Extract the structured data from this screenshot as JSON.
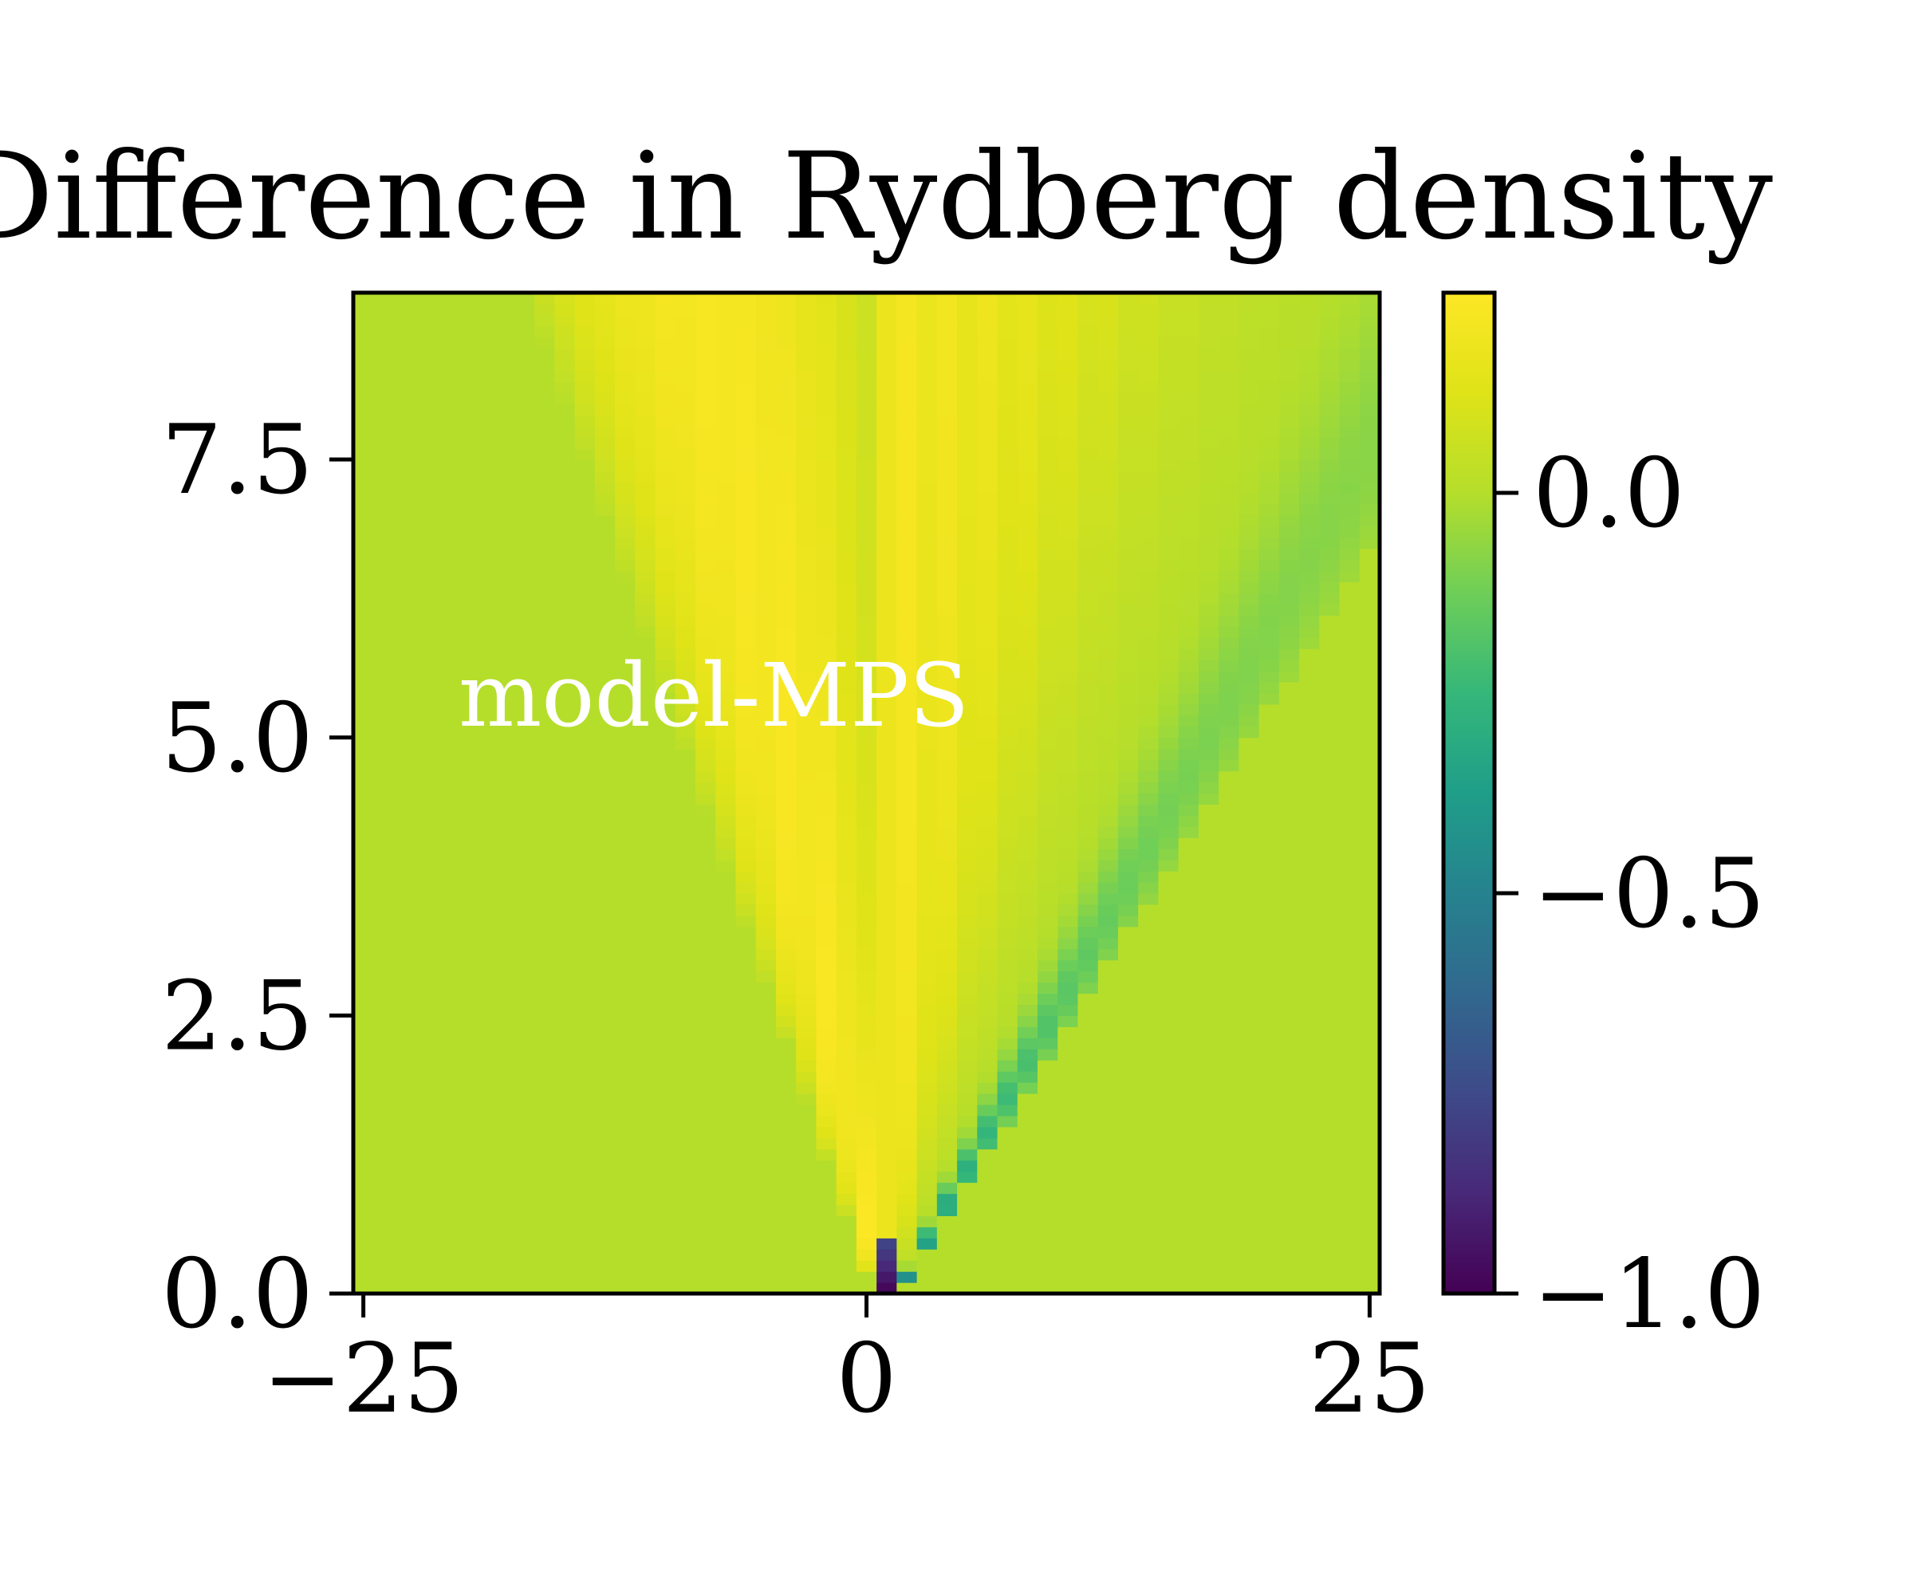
{
  "chart_data": {
    "type": "heatmap",
    "title": "Difference in Rydberg density",
    "annotation": "model-MPS",
    "xlabel": "",
    "ylabel": "",
    "xlim": [
      -25.5,
      25.5
    ],
    "ylim": [
      0,
      9
    ],
    "x_ticks": [
      -25,
      0,
      25
    ],
    "x_tick_labels": [
      "−25",
      "0",
      "25"
    ],
    "y_ticks": [
      0.0,
      2.5,
      5.0,
      7.5
    ],
    "y_tick_labels": [
      "0.0",
      "2.5",
      "5.0",
      "7.5"
    ],
    "colorbar": {
      "colormap": "viridis",
      "range": [
        -1.0,
        0.25
      ],
      "ticks": [
        -1.0,
        -0.5,
        0.0
      ],
      "tick_labels": [
        "−1.0",
        "−0.5",
        "0.0"
      ]
    },
    "field_description_values": {
      "background": 0.0,
      "cone_max": 0.22,
      "dark_stripe_min": -0.4,
      "origin_site_value": -1.0,
      "origin_site_x": 1,
      "left_front_speed": 2.2,
      "right_front_speed": 3.5,
      "grid_nx": 51,
      "grid_ny": 90
    }
  }
}
